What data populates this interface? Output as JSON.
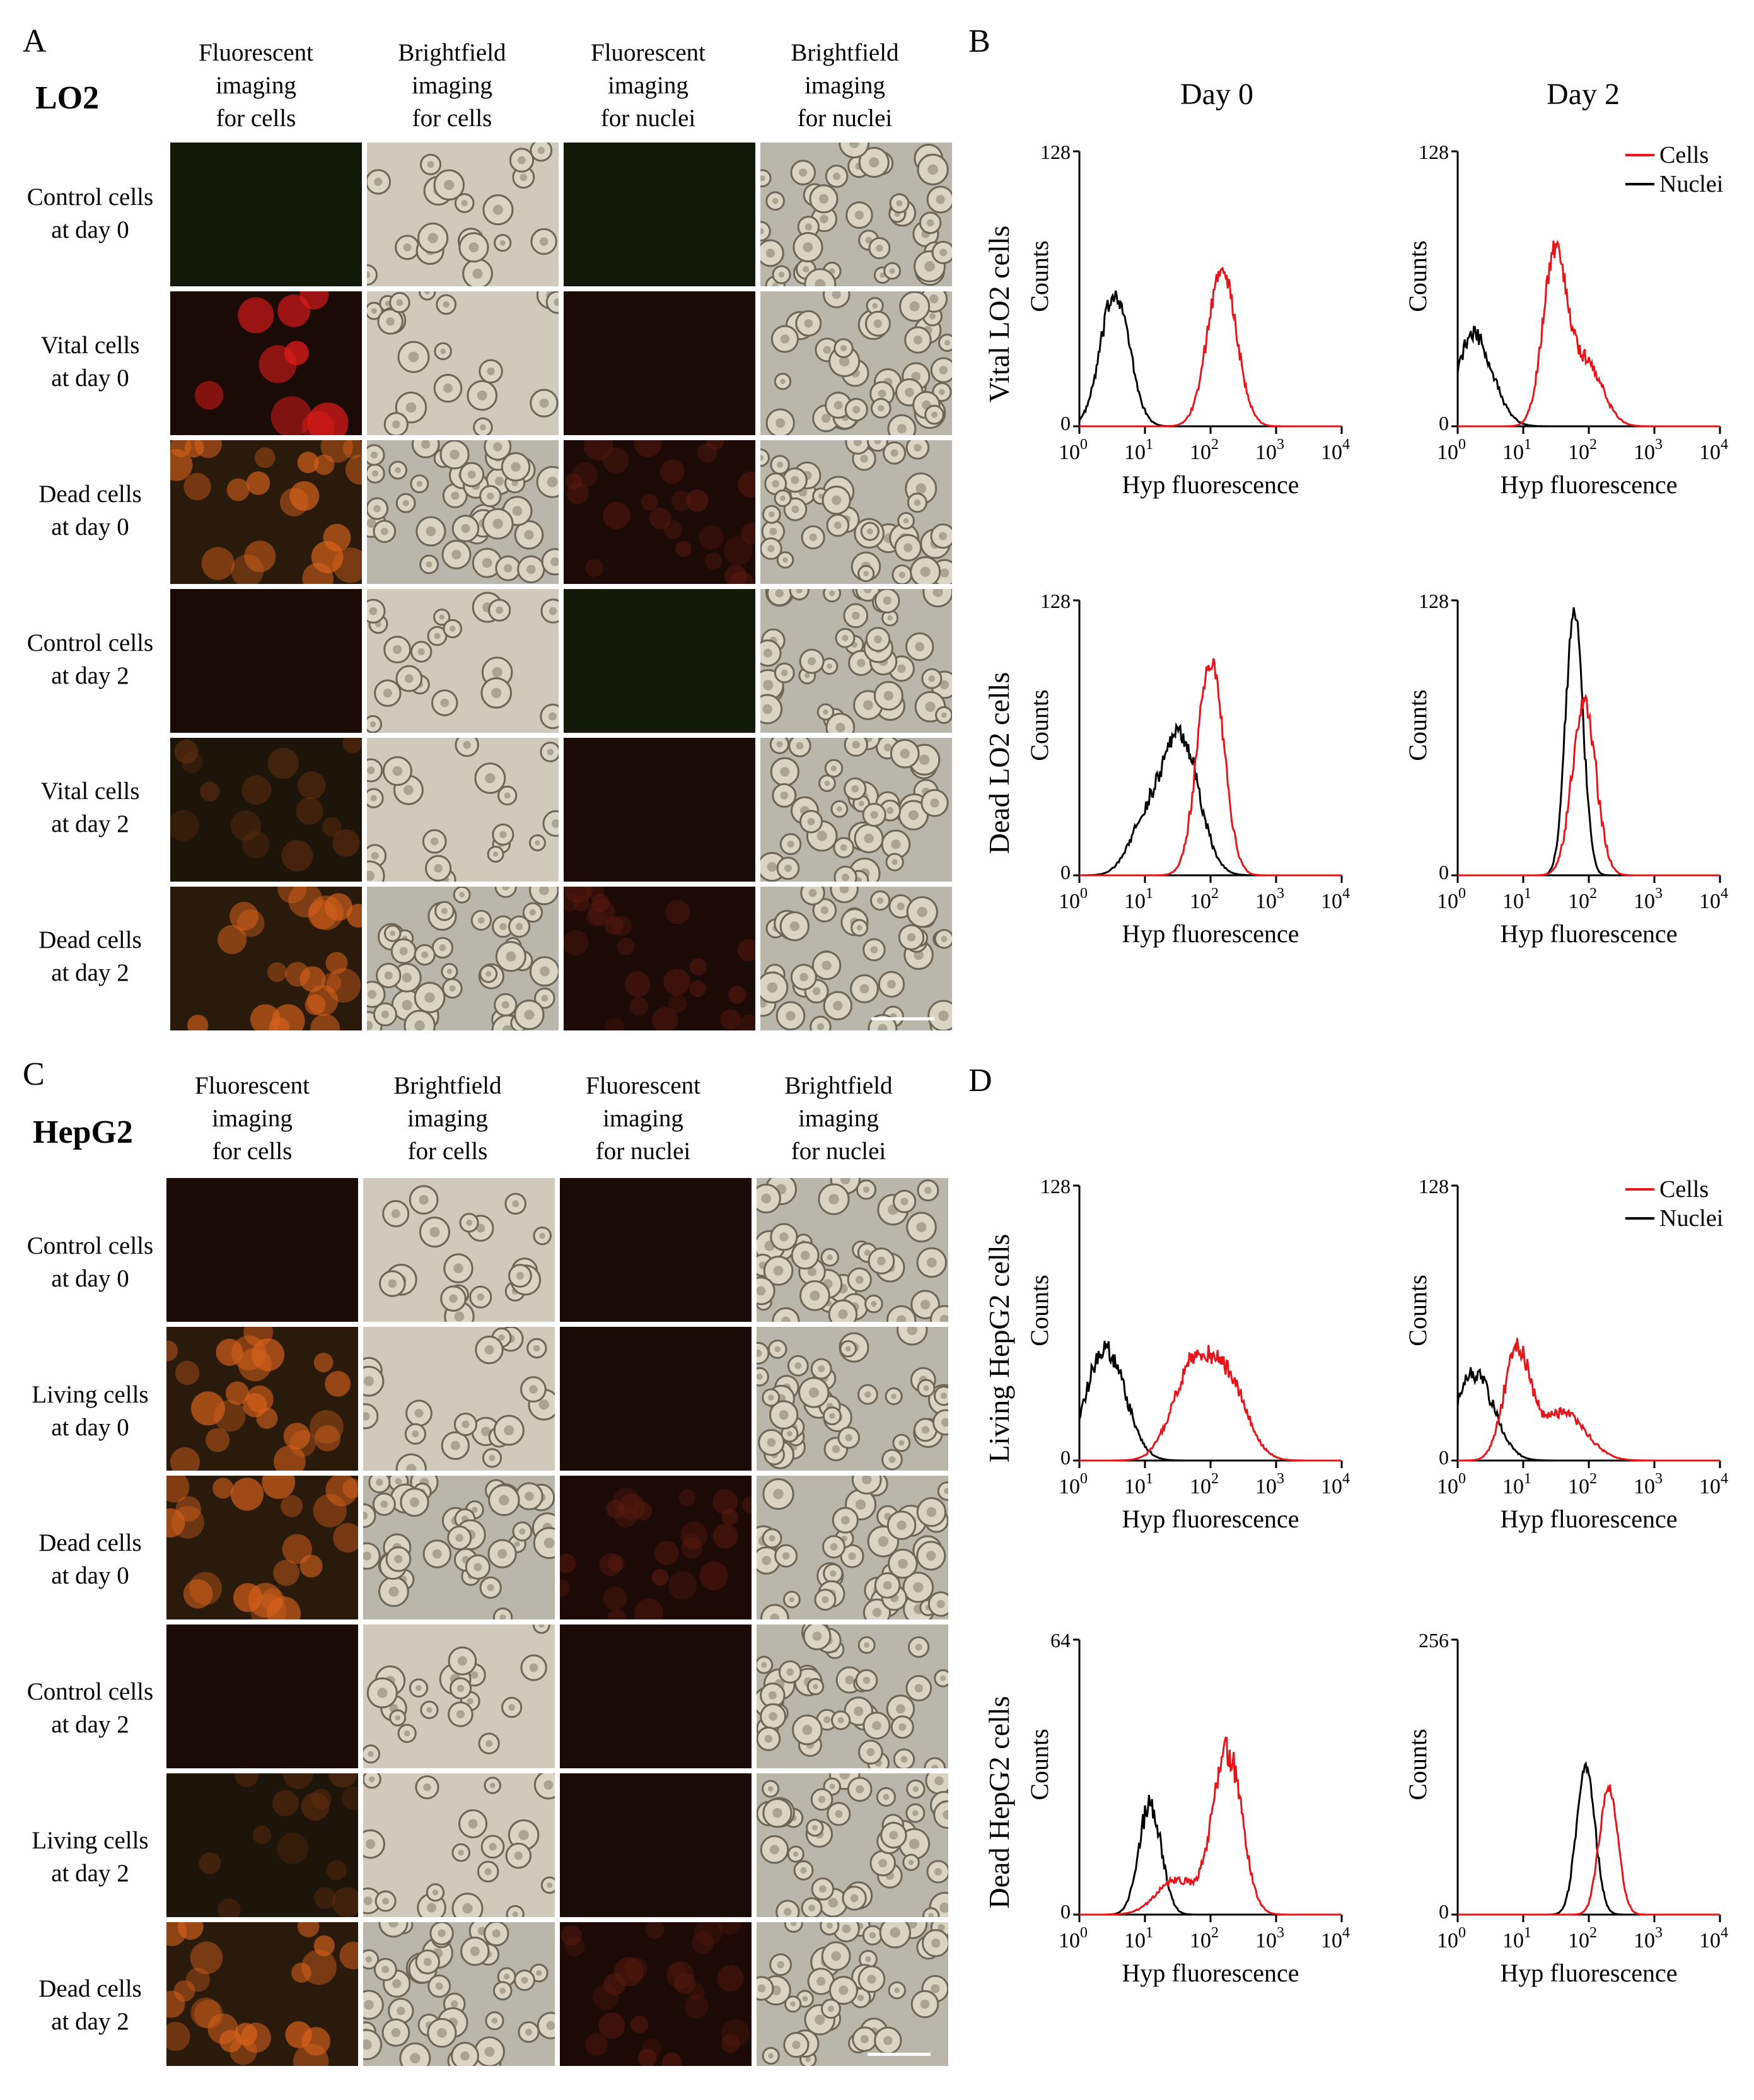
{
  "panels": {
    "A": {
      "letter": "A",
      "cell_line": "LO2",
      "columns": [
        "Fluorescent\nimaging\nfor cells",
        "Brightfield\nimaging\nfor cells",
        "Fluorescent\nimaging\nfor nuclei",
        "Brightfield\nimaging\nfor nuclei"
      ],
      "rows": [
        "Control cells\nat day 0",
        "Vital cells\nat day 0",
        "Dead cells\nat day 0",
        "Control cells\nat day 2",
        "Vital cells\nat day 2",
        "Dead cells\nat day 2"
      ]
    },
    "B": {
      "letter": "B",
      "column_titles": [
        "Day 0",
        "Day 2"
      ]
    },
    "C": {
      "letter": "C",
      "cell_line": "HepG2",
      "columns": [
        "Fluorescent\nimaging\nfor cells",
        "Brightfield\nimaging\nfor cells",
        "Fluorescent\nimaging\nfor nuclei",
        "Brightfield\nimaging\nfor nuclei"
      ],
      "rows": [
        "Control cells\nat day 0",
        "Living cells\nat day 0",
        "Dead cells\nat day 0",
        "Control cells\nat day 2",
        "Living cells\nat day 2",
        "Dead cells\nat day 2"
      ]
    },
    "D": {
      "letter": "D"
    }
  },
  "colors": {
    "cells_series": "#e8141a",
    "nuclei_series": "#000000",
    "fluor_bg_dark": "#1a0b07",
    "fluor_bg_green": "#141a0a",
    "fluor_cell_red": "#e01b1b",
    "fluor_cell_orange": "#d8621c",
    "brightfield_bg": "#cfcabb"
  },
  "micrographs": {
    "A": [
      {
        "fluor_cells": "none-green",
        "fluor_nuclei": "none-green"
      },
      {
        "fluor_cells": "bright-red",
        "fluor_nuclei": "none"
      },
      {
        "fluor_cells": "orange",
        "fluor_nuclei": "faint-red"
      },
      {
        "fluor_cells": "none",
        "fluor_nuclei": "none-green"
      },
      {
        "fluor_cells": "faint-orange",
        "fluor_nuclei": "none"
      },
      {
        "fluor_cells": "orange",
        "fluor_nuclei": "faint-red"
      }
    ],
    "C": [
      {
        "fluor_cells": "none",
        "fluor_nuclei": "none"
      },
      {
        "fluor_cells": "orange",
        "fluor_nuclei": "none"
      },
      {
        "fluor_cells": "orange",
        "fluor_nuclei": "faint-red"
      },
      {
        "fluor_cells": "none",
        "fluor_nuclei": "none"
      },
      {
        "fluor_cells": "faint-orange",
        "fluor_nuclei": "none"
      },
      {
        "fluor_cells": "orange",
        "fluor_nuclei": "faint-red"
      }
    ]
  },
  "chart_data": [
    {
      "type": "line",
      "panel": "B",
      "column": "Day 0",
      "row_label": "Vital LO2 cells",
      "xlabel": "Hyp fluorescence",
      "ylabel": "Counts",
      "x_scale": "log",
      "xlim": [
        1,
        10000
      ],
      "ylim": [
        0,
        128
      ],
      "y_tick_labels": [
        "0",
        "128"
      ],
      "x_tick_labels": [
        "10^0",
        "10^1",
        "10^2",
        "10^3",
        "10^4"
      ],
      "legend": [],
      "series": [
        {
          "name": "Nuclei",
          "color": "#000000",
          "peaks": [
            {
              "center": 3.5,
              "height": 62,
              "width": 0.22
            }
          ]
        },
        {
          "name": "Cells",
          "color": "#e8141a",
          "peaks": [
            {
              "center": 150,
              "height": 72,
              "width": 0.22
            }
          ]
        }
      ]
    },
    {
      "type": "line",
      "panel": "B",
      "column": "Day 2",
      "row_label": "",
      "xlabel": "Hyp fluorescence",
      "ylabel": "Counts",
      "x_scale": "log",
      "xlim": [
        1,
        10000
      ],
      "ylim": [
        0,
        128
      ],
      "y_tick_labels": [
        "0",
        "128"
      ],
      "x_tick_labels": [
        "10^0",
        "10^1",
        "10^2",
        "10^3",
        "10^4"
      ],
      "legend": [
        {
          "label": "Cells",
          "color": "#e8141a"
        },
        {
          "label": "Nuclei",
          "color": "#000000"
        }
      ],
      "series": [
        {
          "name": "Nuclei",
          "color": "#000000",
          "peaks": [
            {
              "center": 1.8,
              "height": 42,
              "width": 0.28
            }
          ]
        },
        {
          "name": "Cells",
          "color": "#e8141a",
          "peaks": [
            {
              "center": 30,
              "height": 78,
              "width": 0.18
            },
            {
              "center": 90,
              "height": 30,
              "width": 0.25
            }
          ]
        }
      ]
    },
    {
      "type": "line",
      "panel": "B",
      "column": "Day 0",
      "row_label": "Dead LO2 cells",
      "xlabel": "Hyp fluorescence",
      "ylabel": "Counts",
      "x_scale": "log",
      "xlim": [
        1,
        10000
      ],
      "ylim": [
        0,
        128
      ],
      "y_tick_labels": [
        "0",
        "128"
      ],
      "x_tick_labels": [
        "10^0",
        "10^1",
        "10^2",
        "10^3",
        "10^4"
      ],
      "legend": [],
      "series": [
        {
          "name": "Nuclei",
          "color": "#000000",
          "peaks": [
            {
              "center": 35,
              "height": 64,
              "width": 0.28
            },
            {
              "center": 10,
              "height": 22,
              "width": 0.25
            }
          ]
        },
        {
          "name": "Cells",
          "color": "#e8141a",
          "peaks": [
            {
              "center": 100,
              "height": 100,
              "width": 0.2
            }
          ]
        }
      ]
    },
    {
      "type": "line",
      "panel": "B",
      "column": "Day 2",
      "row_label": "",
      "xlabel": "Hyp fluorescence",
      "ylabel": "Counts",
      "x_scale": "log",
      "xlim": [
        1,
        10000
      ],
      "ylim": [
        0,
        128
      ],
      "y_tick_labels": [
        "0",
        "128"
      ],
      "x_tick_labels": [
        "10^0",
        "10^1",
        "10^2",
        "10^3",
        "10^4"
      ],
      "legend": [],
      "series": [
        {
          "name": "Nuclei",
          "color": "#000000",
          "peaks": [
            {
              "center": 60,
              "height": 125,
              "width": 0.13
            }
          ]
        },
        {
          "name": "Cells",
          "color": "#e8141a",
          "peaks": [
            {
              "center": 85,
              "height": 80,
              "width": 0.18
            }
          ]
        }
      ]
    },
    {
      "type": "line",
      "panel": "D",
      "column": "Day 0",
      "row_label": "Living HepG2 cells",
      "xlabel": "Hyp fluorescence",
      "ylabel": "Counts",
      "x_scale": "log",
      "xlim": [
        1,
        10000
      ],
      "ylim": [
        0,
        128
      ],
      "y_tick_labels": [
        "0",
        "128"
      ],
      "x_tick_labels": [
        "10^0",
        "10^1",
        "10^2",
        "10^3",
        "10^4"
      ],
      "legend": [],
      "series": [
        {
          "name": "Nuclei",
          "color": "#000000",
          "peaks": [
            {
              "center": 2.5,
              "height": 52,
              "width": 0.3
            }
          ]
        },
        {
          "name": "Cells",
          "color": "#e8141a",
          "peaks": [
            {
              "center": 50,
              "height": 40,
              "width": 0.3
            },
            {
              "center": 180,
              "height": 36,
              "width": 0.3
            }
          ]
        }
      ]
    },
    {
      "type": "line",
      "panel": "D",
      "column": "Day 2",
      "row_label": "",
      "xlabel": "Hyp fluorescence",
      "ylabel": "Counts",
      "x_scale": "log",
      "xlim": [
        1,
        10000
      ],
      "ylim": [
        0,
        128
      ],
      "y_tick_labels": [
        "0",
        "128"
      ],
      "x_tick_labels": [
        "10^0",
        "10^1",
        "10^2",
        "10^3",
        "10^4"
      ],
      "legend": [
        {
          "label": "Cells",
          "color": "#e8141a"
        },
        {
          "label": "Nuclei",
          "color": "#000000"
        }
      ],
      "series": [
        {
          "name": "Nuclei",
          "color": "#000000",
          "peaks": [
            {
              "center": 1.8,
              "height": 40,
              "width": 0.3
            }
          ]
        },
        {
          "name": "Cells",
          "color": "#e8141a",
          "peaks": [
            {
              "center": 8,
              "height": 50,
              "width": 0.2
            },
            {
              "center": 40,
              "height": 22,
              "width": 0.35
            }
          ]
        }
      ]
    },
    {
      "type": "line",
      "panel": "D",
      "column": "Day 0",
      "row_label": "Dead HepG2 cells",
      "xlabel": "Hyp fluorescence",
      "ylabel": "Counts",
      "x_scale": "log",
      "xlim": [
        1,
        10000
      ],
      "ylim": [
        0,
        64
      ],
      "y_tick_labels": [
        "0",
        "64"
      ],
      "x_tick_labels": [
        "10^0",
        "10^1",
        "10^2",
        "10^3",
        "10^4"
      ],
      "legend": [],
      "series": [
        {
          "name": "Nuclei",
          "color": "#000000",
          "peaks": [
            {
              "center": 12,
              "height": 26,
              "width": 0.17
            }
          ]
        },
        {
          "name": "Cells",
          "color": "#e8141a",
          "peaks": [
            {
              "center": 180,
              "height": 38,
              "width": 0.22
            },
            {
              "center": 30,
              "height": 8,
              "width": 0.3
            }
          ]
        }
      ]
    },
    {
      "type": "line",
      "panel": "D",
      "column": "Day 2",
      "row_label": "",
      "xlabel": "Hyp fluorescence",
      "ylabel": "Counts",
      "x_scale": "log",
      "xlim": [
        1,
        10000
      ],
      "ylim": [
        0,
        256
      ],
      "y_tick_labels": [
        "0",
        "256"
      ],
      "x_tick_labels": [
        "10^0",
        "10^1",
        "10^2",
        "10^3",
        "10^4"
      ],
      "legend": [],
      "series": [
        {
          "name": "Nuclei",
          "color": "#000000",
          "peaks": [
            {
              "center": 90,
              "height": 138,
              "width": 0.14
            }
          ]
        },
        {
          "name": "Cells",
          "color": "#e8141a",
          "peaks": [
            {
              "center": 200,
              "height": 118,
              "width": 0.14
            }
          ]
        }
      ]
    }
  ]
}
